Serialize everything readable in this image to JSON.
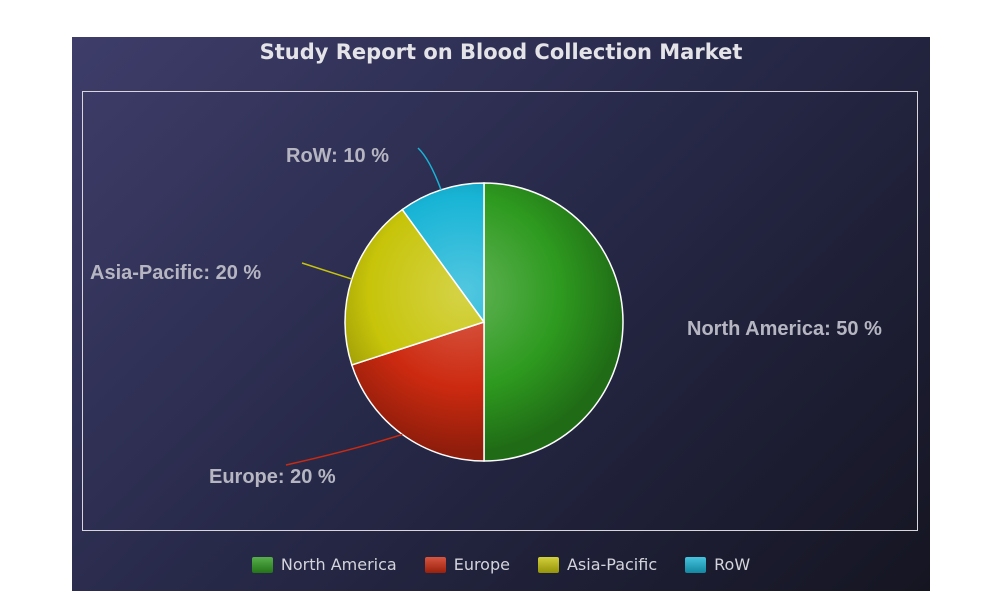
{
  "chart_data": {
    "type": "pie",
    "title": "Study Report on Blood Collection Market",
    "categories": [
      "North America",
      "Europe",
      "Asia-Pacific",
      "RoW"
    ],
    "values": [
      50,
      20,
      20,
      10
    ],
    "unit": "%",
    "labels": [
      "North America: 50 %",
      "Europe: 20 %",
      "Asia-Pacific: 20 %",
      "RoW: 10 %"
    ],
    "legend": {
      "placement": "bottom",
      "entries": [
        "North America",
        "Europe",
        "Asia-Pacific",
        "RoW"
      ]
    },
    "colors": [
      "#2e9a1f",
      "#cc2a10",
      "#c7c40a",
      "#18b4d6"
    ]
  }
}
